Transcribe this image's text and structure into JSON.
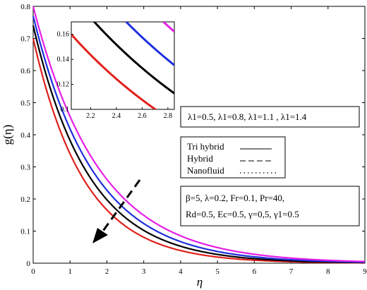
{
  "chart_data": {
    "type": "line",
    "xlabel": "η",
    "ylabel": "g(η)",
    "xlim": [
      0,
      9
    ],
    "ylim": [
      0,
      0.8
    ],
    "xticks": [
      "0",
      "1",
      "2",
      "3",
      "4",
      "5",
      "6",
      "7",
      "8",
      "9"
    ],
    "yticks": [
      "0",
      "0.1",
      "0.2",
      "0.3",
      "0.4",
      "0.5",
      "0.6",
      "0.7",
      "0.8"
    ],
    "lambda_box": "λ1=0.5, λ1=0.8, λ1=1.1 , λ1=1.4",
    "legend": [
      {
        "label": "Tri hybrid",
        "style": "solid"
      },
      {
        "label": "Hybrid",
        "style": "dashed"
      },
      {
        "label": "Nanofluid",
        "style": "dotted"
      }
    ],
    "params_line1": "β=5,  λ=0.2,  Fr=0.1,  Pr=40,",
    "params_line2": "Rd=0.5, Ec=0.5, γ=0,5, γ1=0.5",
    "series": [
      {
        "color": "#e0201b",
        "g0": 0.7,
        "decay": 0.72
      },
      {
        "color": "#000000",
        "g0": 0.74,
        "decay": 0.66
      },
      {
        "color": "#1f2fdc",
        "g0": 0.77,
        "decay": 0.61
      },
      {
        "color": "#e61ee6",
        "g0": 0.8,
        "decay": 0.56
      }
    ],
    "inset": {
      "xlim": [
        2.05,
        2.85
      ],
      "ylim": [
        0.1,
        0.17
      ],
      "xticks": [
        "2.2",
        "2.4",
        "2.6",
        "2.8"
      ],
      "yticks": [
        "0.1",
        "0.12",
        "0.14",
        "0.16"
      ]
    }
  }
}
